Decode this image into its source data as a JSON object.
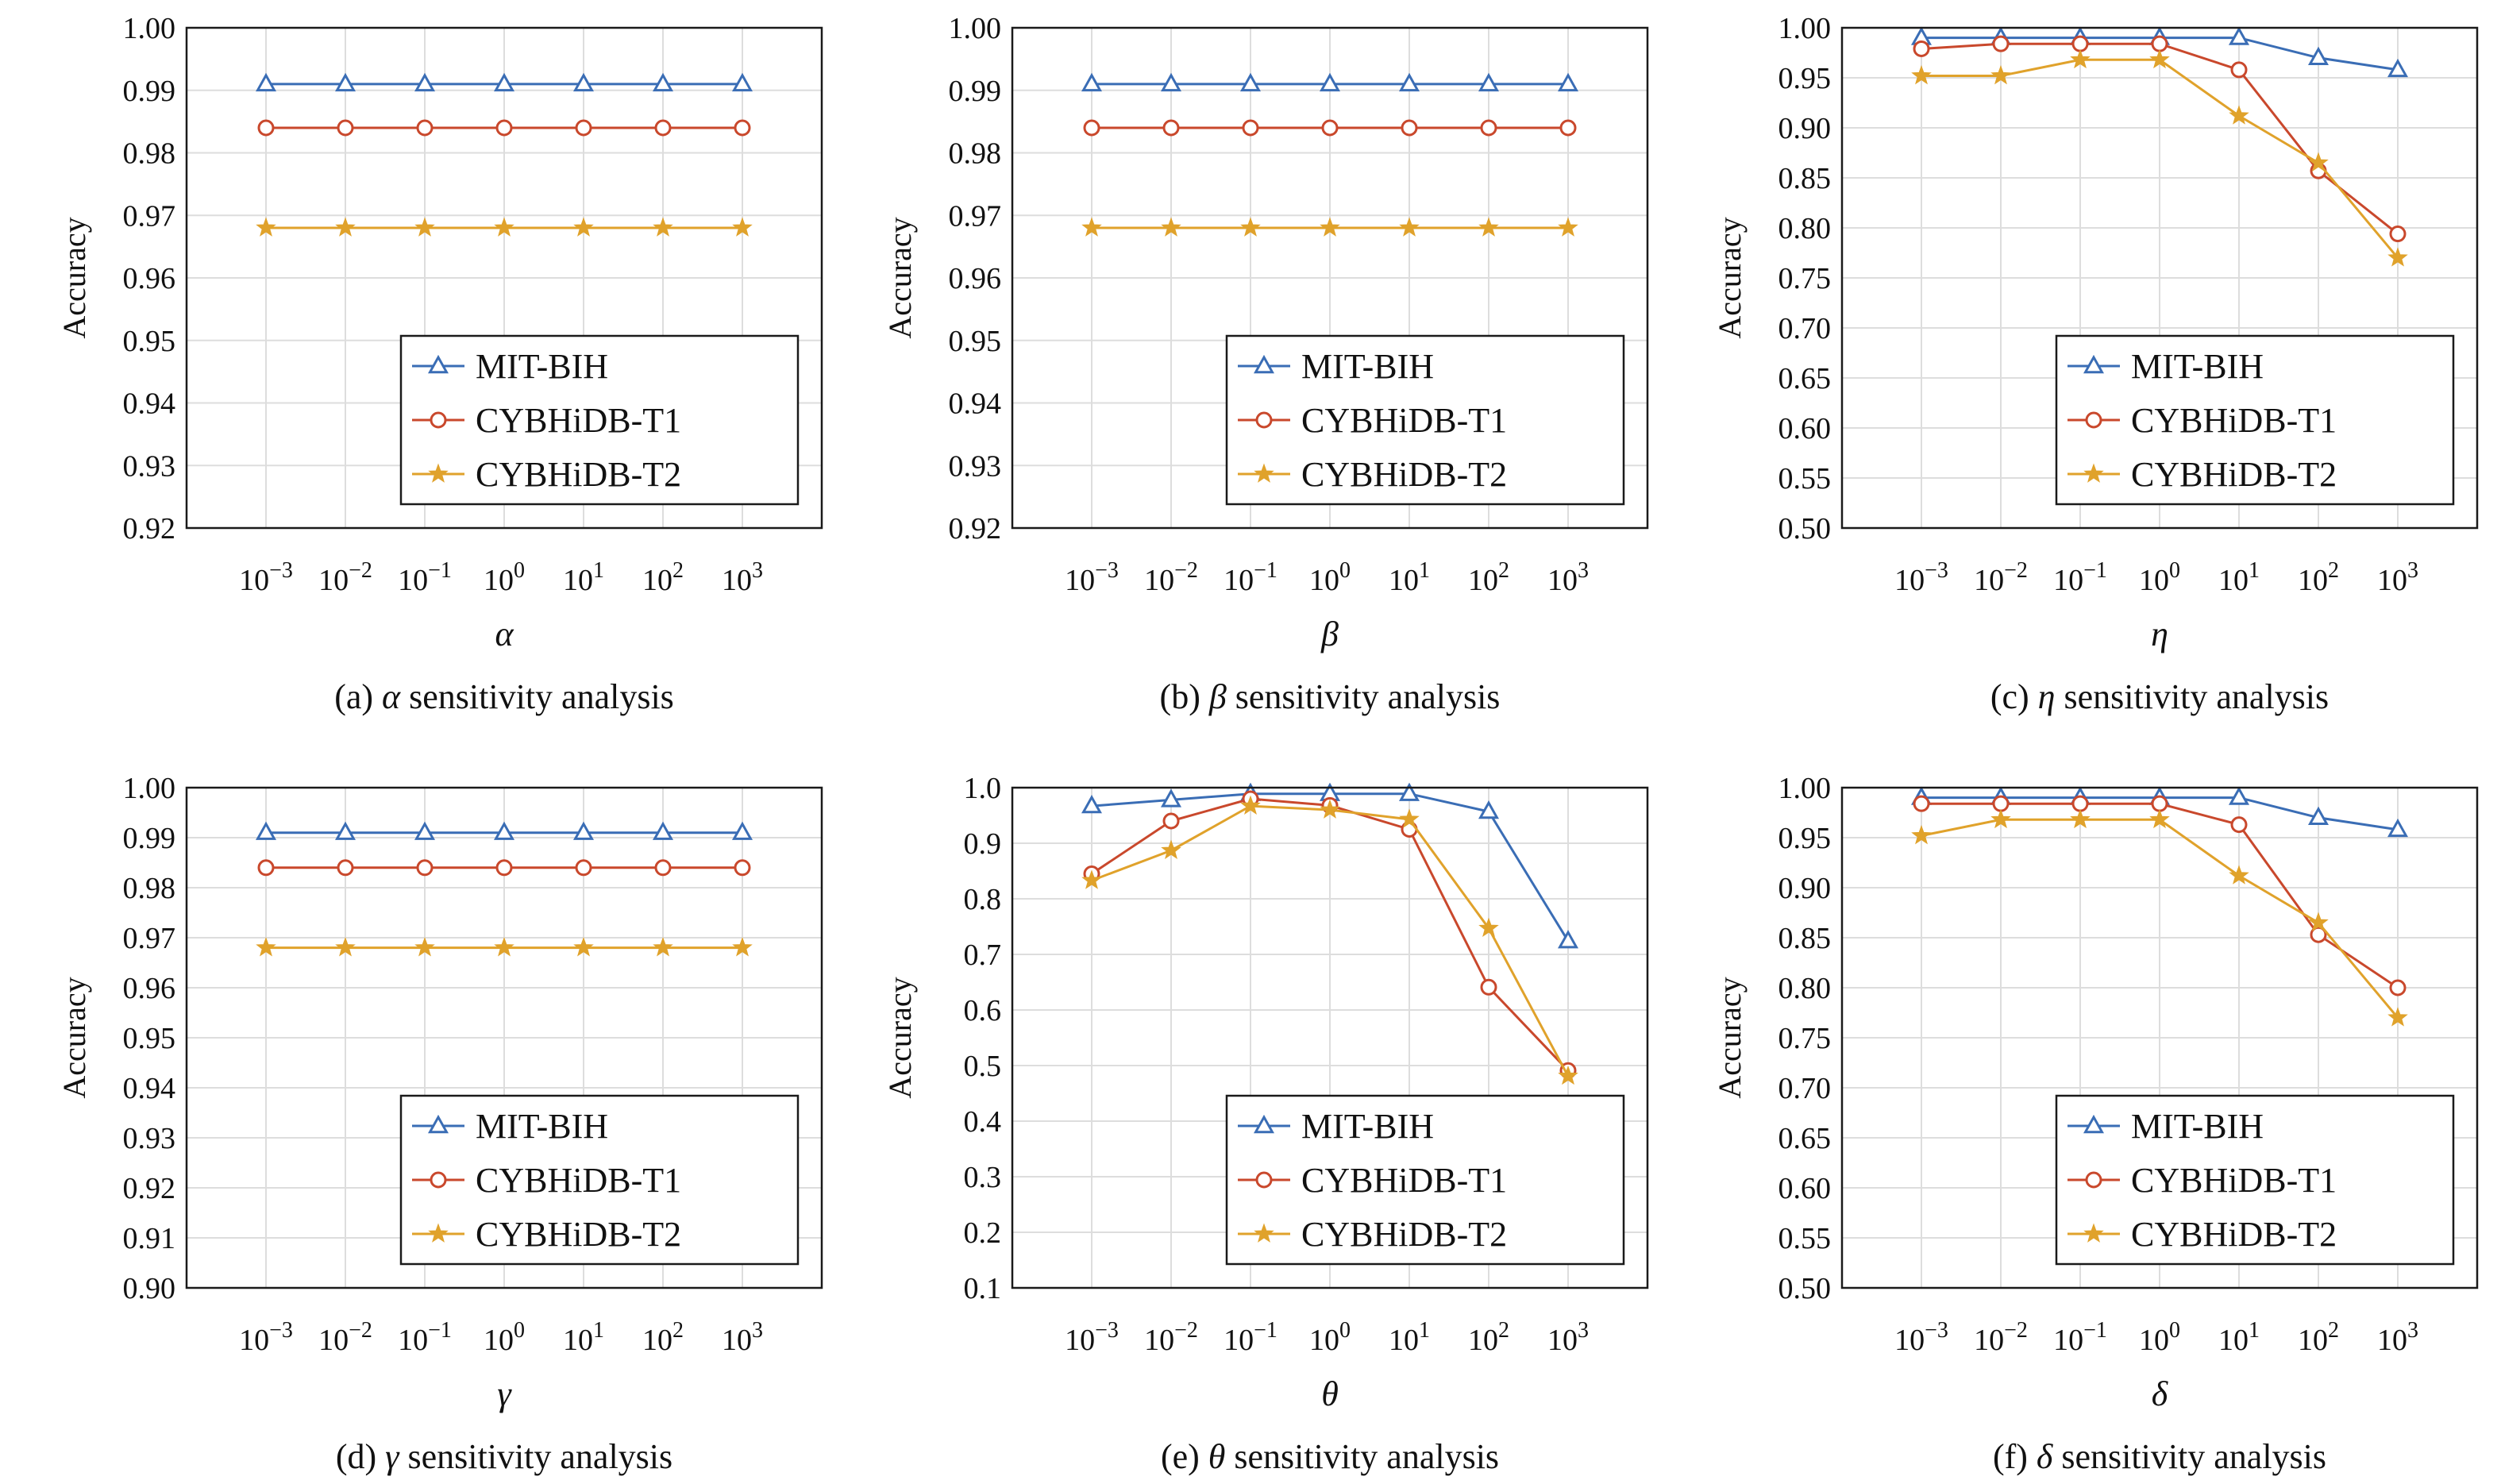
{
  "x_tick_labels": [
    {
      "base": "10",
      "exp": "−3"
    },
    {
      "base": "10",
      "exp": "−2"
    },
    {
      "base": "10",
      "exp": "−1"
    },
    {
      "base": "10",
      "exp": "0"
    },
    {
      "base": "10",
      "exp": "1"
    },
    {
      "base": "10",
      "exp": "2"
    },
    {
      "base": "10",
      "exp": "3"
    }
  ],
  "y_axis_label": "Accuracy",
  "caption_suffix": "sensitivity analysis",
  "series_styles": [
    {
      "name": "MIT-BIH",
      "color": "#3a6db5",
      "marker": "triangle"
    },
    {
      "name": "CYBHiDB-T1",
      "color": "#c9482c",
      "marker": "circle"
    },
    {
      "name": "CYBHiDB-T2",
      "color": "#e0a22b",
      "marker": "star"
    }
  ],
  "chart_data": [
    {
      "type": "line",
      "caption_prefix": "(a)",
      "param": "α",
      "xlabel": "α",
      "ylabel": "Accuracy",
      "x": [
        0.001,
        0.01,
        0.1,
        1,
        10,
        100,
        1000
      ],
      "x_scale": "log",
      "ylim": [
        0.92,
        1.0
      ],
      "yticks": [
        "0.92",
        "0.93",
        "0.94",
        "0.95",
        "0.96",
        "0.97",
        "0.98",
        "0.99",
        "1.00"
      ],
      "grid": true,
      "legend": "bottom-right",
      "series": [
        {
          "name": "MIT-BIH",
          "values": [
            0.991,
            0.991,
            0.991,
            0.991,
            0.991,
            0.991,
            0.991
          ]
        },
        {
          "name": "CYBHiDB-T1",
          "values": [
            0.984,
            0.984,
            0.984,
            0.984,
            0.984,
            0.984,
            0.984
          ]
        },
        {
          "name": "CYBHiDB-T2",
          "values": [
            0.968,
            0.968,
            0.968,
            0.968,
            0.968,
            0.968,
            0.968
          ]
        }
      ]
    },
    {
      "type": "line",
      "caption_prefix": "(b)",
      "param": "β",
      "xlabel": "β",
      "ylabel": "Accuracy",
      "x": [
        0.001,
        0.01,
        0.1,
        1,
        10,
        100,
        1000
      ],
      "x_scale": "log",
      "ylim": [
        0.92,
        1.0
      ],
      "yticks": [
        "0.92",
        "0.93",
        "0.94",
        "0.95",
        "0.96",
        "0.97",
        "0.98",
        "0.99",
        "1.00"
      ],
      "grid": true,
      "legend": "bottom-right",
      "series": [
        {
          "name": "MIT-BIH",
          "values": [
            0.991,
            0.991,
            0.991,
            0.991,
            0.991,
            0.991,
            0.991
          ]
        },
        {
          "name": "CYBHiDB-T1",
          "values": [
            0.984,
            0.984,
            0.984,
            0.984,
            0.984,
            0.984,
            0.984
          ]
        },
        {
          "name": "CYBHiDB-T2",
          "values": [
            0.968,
            0.968,
            0.968,
            0.968,
            0.968,
            0.968,
            0.968
          ]
        }
      ]
    },
    {
      "type": "line",
      "caption_prefix": "(c)",
      "param": "η",
      "xlabel": "η",
      "ylabel": "Accuracy",
      "x": [
        0.001,
        0.01,
        0.1,
        1,
        10,
        100,
        1000
      ],
      "x_scale": "log",
      "ylim": [
        0.5,
        1.0
      ],
      "yticks": [
        "0.50",
        "0.55",
        "0.60",
        "0.65",
        "0.70",
        "0.75",
        "0.80",
        "0.85",
        "0.90",
        "0.95",
        "1.00"
      ],
      "grid": true,
      "legend": "bottom-right",
      "series": [
        {
          "name": "MIT-BIH",
          "values": [
            0.99,
            0.99,
            0.99,
            0.99,
            0.99,
            0.97,
            0.958
          ]
        },
        {
          "name": "CYBHiDB-T1",
          "values": [
            0.979,
            0.984,
            0.984,
            0.984,
            0.958,
            0.857,
            0.794
          ]
        },
        {
          "name": "CYBHiDB-T2",
          "values": [
            0.952,
            0.952,
            0.968,
            0.968,
            0.912,
            0.865,
            0.77
          ]
        }
      ]
    },
    {
      "type": "line",
      "caption_prefix": "(d)",
      "param": "γ",
      "xlabel": "γ",
      "ylabel": "Accuracy",
      "x": [
        0.001,
        0.01,
        0.1,
        1,
        10,
        100,
        1000
      ],
      "x_scale": "log",
      "ylim": [
        0.9,
        1.0
      ],
      "yticks": [
        "0.90",
        "0.91",
        "0.92",
        "0.93",
        "0.94",
        "0.95",
        "0.96",
        "0.97",
        "0.98",
        "0.99",
        "1.00"
      ],
      "grid": true,
      "legend": "bottom-right",
      "series": [
        {
          "name": "MIT-BIH",
          "values": [
            0.991,
            0.991,
            0.991,
            0.991,
            0.991,
            0.991,
            0.991
          ]
        },
        {
          "name": "CYBHiDB-T1",
          "values": [
            0.984,
            0.984,
            0.984,
            0.984,
            0.984,
            0.984,
            0.984
          ]
        },
        {
          "name": "CYBHiDB-T2",
          "values": [
            0.968,
            0.968,
            0.968,
            0.968,
            0.968,
            0.968,
            0.968
          ]
        }
      ]
    },
    {
      "type": "line",
      "caption_prefix": "(e)",
      "param": "θ",
      "xlabel": "θ",
      "ylabel": "Accuracy",
      "x": [
        0.001,
        0.01,
        0.1,
        1,
        10,
        100,
        1000
      ],
      "x_scale": "log",
      "ylim": [
        0.1,
        1.0
      ],
      "yticks": [
        "0.1",
        "0.2",
        "0.3",
        "0.4",
        "0.5",
        "0.6",
        "0.7",
        "0.8",
        "0.9",
        "1.0"
      ],
      "grid": true,
      "legend": "bottom-right",
      "series": [
        {
          "name": "MIT-BIH",
          "values": [
            0.967,
            0.978,
            0.989,
            0.989,
            0.989,
            0.957,
            0.724
          ]
        },
        {
          "name": "CYBHiDB-T1",
          "values": [
            0.845,
            0.94,
            0.98,
            0.968,
            0.925,
            0.641,
            0.491
          ]
        },
        {
          "name": "CYBHiDB-T2",
          "values": [
            0.833,
            0.887,
            0.967,
            0.96,
            0.943,
            0.747,
            0.481
          ]
        }
      ]
    },
    {
      "type": "line",
      "caption_prefix": "(f)",
      "param": "δ",
      "xlabel": "δ",
      "ylabel": "Accuracy",
      "x": [
        0.001,
        0.01,
        0.1,
        1,
        10,
        100,
        1000
      ],
      "x_scale": "log",
      "ylim": [
        0.5,
        1.0
      ],
      "yticks": [
        "0.50",
        "0.55",
        "0.60",
        "0.65",
        "0.70",
        "0.75",
        "0.80",
        "0.85",
        "0.90",
        "0.95",
        "1.00"
      ],
      "grid": true,
      "legend": "bottom-right",
      "series": [
        {
          "name": "MIT-BIH",
          "values": [
            0.99,
            0.99,
            0.99,
            0.99,
            0.99,
            0.97,
            0.958
          ]
        },
        {
          "name": "CYBHiDB-T1",
          "values": [
            0.984,
            0.984,
            0.984,
            0.984,
            0.963,
            0.853,
            0.8
          ]
        },
        {
          "name": "CYBHiDB-T2",
          "values": [
            0.952,
            0.968,
            0.968,
            0.968,
            0.912,
            0.865,
            0.77
          ]
        }
      ]
    }
  ]
}
